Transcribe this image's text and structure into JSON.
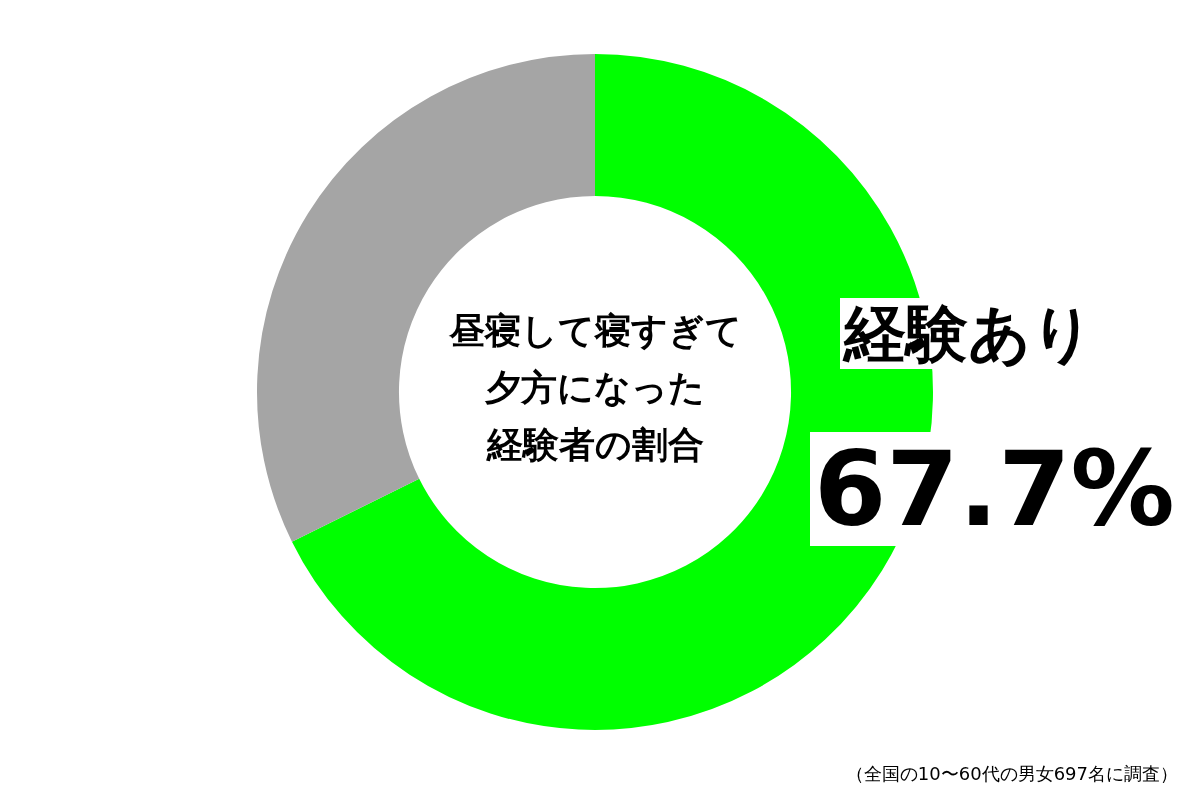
{
  "chart_data": {
    "type": "donut",
    "title": "昼寝して寝すぎて夕方になった経験者の割合",
    "categories": [
      "経験あり",
      null
    ],
    "values": [
      67.7,
      32.3
    ],
    "colors": [
      "#00ff00",
      "#a5a5a5"
    ],
    "value_labels": [
      "67.7%",
      null
    ],
    "legend": false,
    "annotations": [
      "（全国の10〜60代の男女697名に調査）"
    ]
  }
}
